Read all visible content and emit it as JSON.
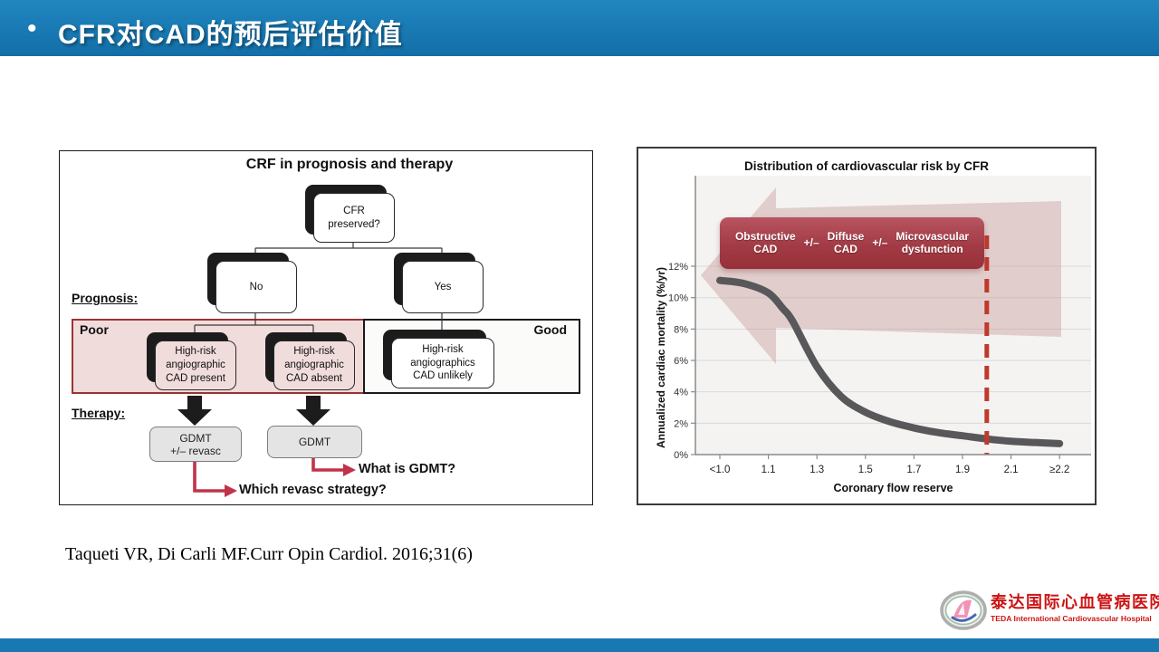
{
  "header": {
    "bullet": "•",
    "title": "CFR对CAD的预后评估价值"
  },
  "citation": "Taqueti VR, Di Carli MF.Curr Opin Cardiol. 2016;31(6)",
  "flowchart": {
    "title": "CRF in prognosis and therapy",
    "root": "CFR\npreserved?",
    "no": "No",
    "yes": "Yes",
    "prognosis_label": "Prognosis:",
    "poor_label": "Poor",
    "good_label": "Good",
    "node_present": "High-risk\nangiographic\nCAD present",
    "node_absent": "High-risk\nangiographic\nCAD absent",
    "node_unlikely": "High-risk\nangiographics\nCAD unlikely",
    "therapy_label": "Therapy:",
    "gdmt_revasc": "GDMT\n+/– revasc",
    "gdmt": "GDMT",
    "q_revasc": "Which revasc strategy?",
    "q_gdmt": "What is GDMT?"
  },
  "chart_data": {
    "type": "line",
    "title": "Distribution of cardiovascular risk by CFR",
    "xlabel": "Coronary flow reserve",
    "ylabel": "Annualized cardiac mortality (%/yr)",
    "categories": [
      "<1.0",
      "1.1",
      "1.3",
      "1.5",
      "1.7",
      "1.9",
      "2.1",
      "≥2.2"
    ],
    "series": [
      {
        "name": "Annualized cardiac mortality (%/yr)",
        "values": [
          11.1,
          10.3,
          5.6,
          2.7,
          1.7,
          1.2,
          0.85,
          0.7
        ]
      }
    ],
    "curve_readings": [
      [
        0,
        11.1
      ],
      [
        0.5,
        10.9
      ],
      [
        1,
        10.3
      ],
      [
        1.3,
        9.3
      ],
      [
        1.5,
        8.5
      ],
      [
        2,
        5.6
      ],
      [
        2.5,
        3.7
      ],
      [
        3,
        2.7
      ],
      [
        3.5,
        2.1
      ],
      [
        4,
        1.7
      ],
      [
        4.5,
        1.4
      ],
      [
        5,
        1.2
      ],
      [
        5.5,
        1.0
      ],
      [
        6,
        0.85
      ],
      [
        6.5,
        0.77
      ],
      [
        7,
        0.7
      ]
    ],
    "ylim": [
      0,
      12
    ],
    "ytick_step": 2,
    "ytick_suffix": "%",
    "grid": true,
    "legend": "none",
    "threshold": {
      "cfr": 2.0,
      "category_index": 5.5
    },
    "banner": {
      "items": [
        "Obstructive\nCAD",
        "+/–",
        "Diffuse\nCAD",
        "+/–",
        "Microvascular\ndysfunction"
      ]
    }
  },
  "logo": {
    "cn": "泰达国际心血管病医院",
    "en": "TEDA International Cardiovascular Hospital"
  },
  "colors": {
    "header_blue": "#1878b2",
    "crimson": "#c0334a",
    "threshold_red": "#c0392b",
    "curve_gray": "#58585a",
    "pink_fill": "#f1dcdc",
    "poor_border": "#9b3434",
    "plot_bg": "#f4f3f1",
    "gridline": "#d9d9d9",
    "arrow_tint": "rgba(197,152,152,0.42)"
  }
}
